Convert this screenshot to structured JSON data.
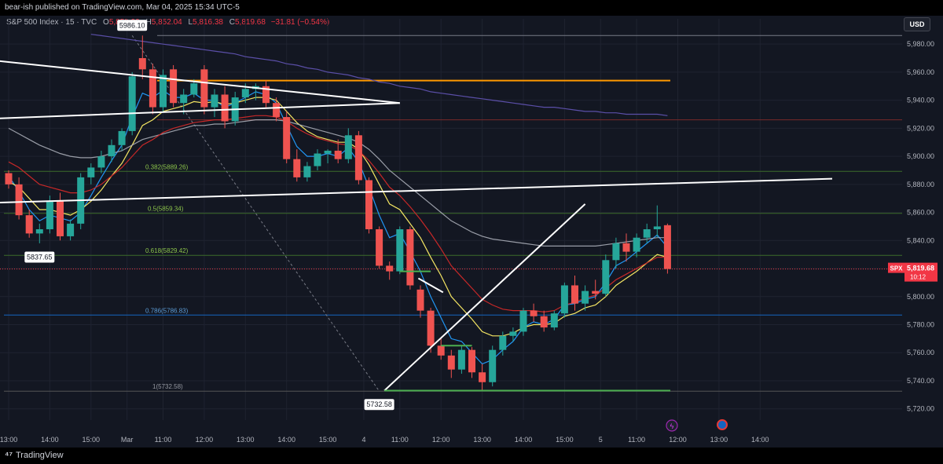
{
  "header": {
    "published": "bear-ish published on TradingView.com, Mar 04, 2025 15:34 UTC-5",
    "symbol_line": "S&P 500 Index · 15 · TVC",
    "open_label": "O",
    "open": "5,850.90",
    "high_label": "H",
    "high": "5,852.04",
    "low_label": "L",
    "low": "5,816.38",
    "close_label": "C",
    "close": "5,819.68",
    "change": "−31.81 (−0.54%)"
  },
  "currency": "USD",
  "footer": {
    "brand": "TradingView",
    "logo": "tv-logo-icon"
  },
  "colors": {
    "background": "#131722",
    "up": "#26a69a",
    "down": "#ef5350",
    "orange": "#ff9800",
    "purple": "#5b4fa8",
    "gray_ma": "#9598a1",
    "yellow_ma": "#f5e663",
    "blue_ma": "#2196f3",
    "red_ma": "#b71c1c",
    "fib_line": "#3d6b2a",
    "fib_blue": "#1565c0"
  },
  "chart_data": {
    "type": "candlestick",
    "symbol": "SPX",
    "yaxis": {
      "ticks": [
        "5,980.00",
        "5,960.00",
        "5,940.00",
        "5,920.00",
        "5,900.00",
        "5,880.00",
        "5,860.00",
        "5,840.00",
        "5,820.00",
        "5,800.00",
        "5,780.00",
        "5,760.00",
        "5,740.00",
        "5,720.00"
      ],
      "tick_values": [
        5980,
        5960,
        5940,
        5920,
        5900,
        5880,
        5860,
        5840,
        5820,
        5800,
        5780,
        5760,
        5740,
        5720
      ]
    },
    "xaxis": {
      "ticks": [
        "13:00",
        "14:00",
        "15:00",
        "Mar",
        "11:00",
        "12:00",
        "13:00",
        "14:00",
        "15:00",
        "4",
        "11:00",
        "12:00",
        "13:00",
        "14:00",
        "15:00",
        "5",
        "11:00",
        "12:00",
        "13:00",
        "14:00"
      ],
      "tick_index": [
        0,
        4,
        8,
        11.5,
        15,
        19,
        23,
        27,
        31,
        34.5,
        38,
        42,
        46,
        50,
        54,
        57.5,
        61,
        65,
        69,
        73
      ]
    },
    "last_price": {
      "label": "SPX",
      "value": "5,819.68",
      "countdown": "10:12",
      "price": 5819.68
    },
    "price_labels": [
      {
        "text": "5986.10",
        "index": 12,
        "price": 5986.1
      },
      {
        "text": "5837.65",
        "index": 3,
        "price": 5837.65
      },
      {
        "text": "5732.58",
        "index": 36,
        "price": 5732.58
      }
    ],
    "fib_levels": [
      {
        "label": "0.382(5889.26)",
        "price": 5889.26
      },
      {
        "label": "0.5(5859.34)",
        "price": 5859.34
      },
      {
        "label": "0.618(5829.42)",
        "price": 5829.42
      },
      {
        "label": "0.786(5786.83)",
        "price": 5786.83
      },
      {
        "label": "1(5732.58)",
        "price": 5732.58
      }
    ],
    "hlines": [
      {
        "name": "top-level",
        "price": 5986.1
      },
      {
        "name": "orange-resistance",
        "price": 5954
      },
      {
        "name": "red-level",
        "price": 5926
      }
    ],
    "candles": [
      [
        5888,
        5890,
        5877,
        5880
      ],
      [
        5880,
        5885,
        5855,
        5858
      ],
      [
        5858,
        5862,
        5842,
        5845
      ],
      [
        5845,
        5852,
        5838,
        5848
      ],
      [
        5848,
        5872,
        5845,
        5868
      ],
      [
        5868,
        5874,
        5840,
        5843
      ],
      [
        5843,
        5855,
        5840,
        5852
      ],
      [
        5852,
        5888,
        5848,
        5885
      ],
      [
        5885,
        5895,
        5880,
        5892
      ],
      [
        5892,
        5904,
        5888,
        5900
      ],
      [
        5900,
        5912,
        5896,
        5908
      ],
      [
        5908,
        5920,
        5904,
        5918
      ],
      [
        5918,
        5960,
        5915,
        5957
      ],
      [
        5970,
        5986.1,
        5955,
        5962
      ],
      [
        5962,
        5966,
        5930,
        5935
      ],
      [
        5935,
        5962,
        5932,
        5958
      ],
      [
        5962,
        5965,
        5935,
        5938
      ],
      [
        5938,
        5948,
        5930,
        5944
      ],
      [
        5944,
        5955,
        5942,
        5952
      ],
      [
        5962,
        5965,
        5930,
        5935
      ],
      [
        5935,
        5948,
        5928,
        5944
      ],
      [
        5944,
        5950,
        5920,
        5925
      ],
      [
        5925,
        5946,
        5922,
        5942
      ],
      [
        5942,
        5952,
        5938,
        5948
      ],
      [
        5948,
        5952,
        5940,
        5950
      ],
      [
        5950,
        5954,
        5935,
        5938
      ],
      [
        5938,
        5942,
        5925,
        5928
      ],
      [
        5928,
        5932,
        5895,
        5898
      ],
      [
        5898,
        5905,
        5882,
        5885
      ],
      [
        5885,
        5896,
        5882,
        5893
      ],
      [
        5893,
        5905,
        5890,
        5902
      ],
      [
        5902,
        5905,
        5895,
        5904
      ],
      [
        5904,
        5912,
        5895,
        5898
      ],
      [
        5898,
        5920,
        5895,
        5915
      ],
      [
        5915,
        5918,
        5880,
        5883
      ],
      [
        5883,
        5885,
        5845,
        5848
      ],
      [
        5848,
        5850,
        5820,
        5822
      ],
      [
        5822,
        5825,
        5812,
        5818
      ],
      [
        5818,
        5850,
        5816,
        5848
      ],
      [
        5848,
        5850,
        5805,
        5808
      ],
      [
        5805,
        5808,
        5785,
        5790
      ],
      [
        5790,
        5792,
        5760,
        5765
      ],
      [
        5765,
        5770,
        5755,
        5758
      ],
      [
        5758,
        5762,
        5742,
        5748
      ],
      [
        5748,
        5765,
        5745,
        5762
      ],
      [
        5762,
        5764,
        5742,
        5746
      ],
      [
        5746,
        5752,
        5732.58,
        5739
      ],
      [
        5739,
        5765,
        5736,
        5762
      ],
      [
        5762,
        5775,
        5758,
        5772
      ],
      [
        5772,
        5778,
        5768,
        5775
      ],
      [
        5775,
        5792,
        5772,
        5790
      ],
      [
        5790,
        5795,
        5782,
        5786
      ],
      [
        5786,
        5790,
        5775,
        5778
      ],
      [
        5778,
        5790,
        5776,
        5788
      ],
      [
        5788,
        5810,
        5785,
        5808
      ],
      [
        5808,
        5815,
        5790,
        5795
      ],
      [
        5795,
        5808,
        5790,
        5804
      ],
      [
        5804,
        5812,
        5798,
        5802
      ],
      [
        5802,
        5830,
        5800,
        5826
      ],
      [
        5826,
        5842,
        5820,
        5838
      ],
      [
        5838,
        5845,
        5825,
        5832
      ],
      [
        5832,
        5845,
        5828,
        5842
      ],
      [
        5842,
        5852,
        5838,
        5848
      ],
      [
        5848,
        5865,
        5842,
        5850
      ],
      [
        5850.9,
        5852.04,
        5816.38,
        5819.68
      ]
    ],
    "moving_averages": [
      {
        "name": "blue",
        "values": [
          5886,
          5875,
          5862,
          5854,
          5858,
          5856,
          5854,
          5860,
          5872,
          5885,
          5897,
          5908,
          5928,
          5945,
          5942,
          5947,
          5942,
          5942,
          5945,
          5940,
          5940,
          5935,
          5938,
          5942,
          5946,
          5944,
          5938,
          5922,
          5907,
          5900,
          5900,
          5902,
          5900,
          5906,
          5896,
          5878,
          5858,
          5842,
          5845,
          5832,
          5818,
          5800,
          5785,
          5770,
          5768,
          5760,
          5752,
          5755,
          5762,
          5768,
          5778,
          5782,
          5780,
          5784,
          5794,
          5795,
          5798,
          5800,
          5810,
          5822,
          5826,
          5832,
          5838,
          5844,
          5835
        ]
      },
      {
        "name": "yellow",
        "values": [
          5882,
          5878,
          5870,
          5862,
          5862,
          5860,
          5858,
          5862,
          5868,
          5876,
          5886,
          5895,
          5908,
          5922,
          5926,
          5932,
          5934,
          5936,
          5939,
          5938,
          5939,
          5937,
          5938,
          5940,
          5942,
          5942,
          5940,
          5932,
          5924,
          5918,
          5914,
          5912,
          5910,
          5910,
          5905,
          5894,
          5880,
          5866,
          5862,
          5852,
          5842,
          5828,
          5815,
          5800,
          5792,
          5784,
          5775,
          5772,
          5772,
          5774,
          5778,
          5780,
          5780,
          5781,
          5786,
          5788,
          5792,
          5794,
          5800,
          5808,
          5813,
          5818,
          5824,
          5830,
          5828
        ]
      },
      {
        "name": "gray",
        "values": [
          5920,
          5916,
          5912,
          5908,
          5905,
          5902,
          5900,
          5899,
          5899,
          5900,
          5902,
          5904,
          5908,
          5912,
          5914,
          5916,
          5918,
          5920,
          5922,
          5922,
          5923,
          5923,
          5924,
          5925,
          5926,
          5926,
          5926,
          5925,
          5923,
          5921,
          5919,
          5917,
          5915,
          5913,
          5910,
          5905,
          5898,
          5890,
          5884,
          5878,
          5872,
          5866,
          5860,
          5854,
          5850,
          5846,
          5843,
          5841,
          5840,
          5839,
          5838,
          5837,
          5836,
          5836,
          5836,
          5836,
          5836,
          5836,
          5837,
          5838,
          5839,
          5840,
          5841,
          5842,
          5842
        ]
      },
      {
        "name": "red",
        "values": [
          5896,
          5892,
          5886,
          5880,
          5878,
          5876,
          5874,
          5874,
          5876,
          5880,
          5886,
          5892,
          5900,
          5908,
          5912,
          5917,
          5920,
          5922,
          5924,
          5925,
          5926,
          5926,
          5927,
          5928,
          5929,
          5929,
          5928,
          5925,
          5920,
          5916,
          5913,
          5911,
          5909,
          5908,
          5904,
          5897,
          5888,
          5878,
          5872,
          5864,
          5855,
          5845,
          5834,
          5822,
          5814,
          5806,
          5798,
          5794,
          5791,
          5790,
          5790,
          5790,
          5789,
          5790,
          5794,
          5796,
          5799,
          5801,
          5806,
          5812,
          5816,
          5820,
          5824,
          5828,
          5828
        ]
      },
      {
        "name": "purple",
        "values": [
          5995,
          5994,
          5993,
          5992,
          5991,
          5990,
          5989,
          5988,
          5987,
          5986,
          5985,
          5984,
          5983,
          5982,
          5981,
          5980,
          5979,
          5978,
          5977,
          5976,
          5975,
          5974,
          5973,
          5971,
          5970,
          5969,
          5968,
          5966,
          5965,
          5963,
          5962,
          5960,
          5959,
          5958,
          5956,
          5955,
          5953,
          5952,
          5950,
          5949,
          5948,
          5946,
          5945,
          5944,
          5943,
          5942,
          5941,
          5940,
          5939,
          5938,
          5937,
          5936,
          5935,
          5935,
          5934,
          5933,
          5932,
          5932,
          5931,
          5931,
          5930,
          5930,
          5930,
          5930,
          5929
        ]
      }
    ],
    "trendlines": [
      {
        "name": "triangle-upper",
        "p1": [
          -1,
          5968
        ],
        "p2": [
          38,
          5938
        ]
      },
      {
        "name": "triangle-lower",
        "p1": [
          -1,
          5927
        ],
        "p2": [
          38,
          5938
        ]
      },
      {
        "name": "long-resistance",
        "p1": [
          -1,
          5867
        ],
        "p2": [
          80,
          5884
        ]
      },
      {
        "name": "rising-support",
        "p1": [
          36.5,
          5733
        ],
        "p2": [
          56,
          5866
        ]
      },
      {
        "name": "small-channel",
        "p1": [
          39.8,
          5813
        ],
        "p2": [
          42.2,
          5803
        ]
      }
    ],
    "ylim": [
      5712,
      5998
    ],
    "grid": true,
    "legend": "top-left"
  }
}
